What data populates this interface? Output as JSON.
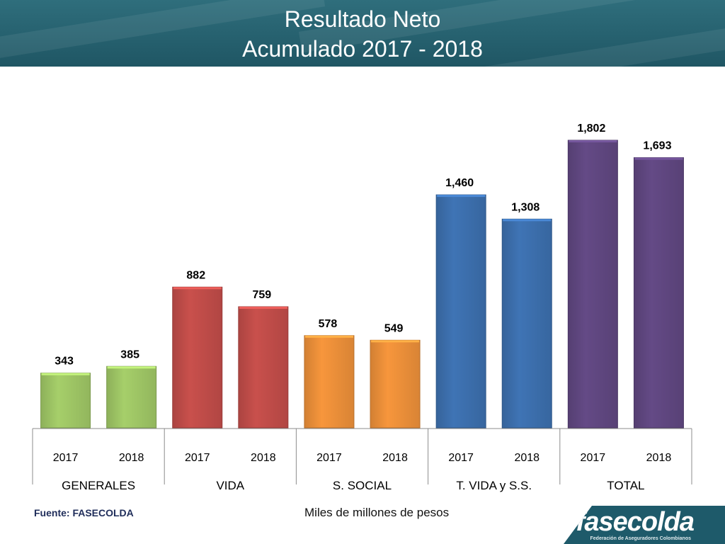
{
  "header": {
    "title_line1": "Resultado Neto",
    "title_line2": "Acumulado  2017 - 2018"
  },
  "footer": {
    "source": "Fuente: FASECOLDA",
    "unit": "Miles de millones de pesos",
    "logo_name": "fasecolda",
    "logo_tagline": "Federación de Aseguradores Colombianos"
  },
  "chart_data": {
    "type": "bar",
    "title": "Resultado Neto Acumulado 2017 - 2018",
    "ylabel": "",
    "xlabel": "",
    "unit": "Miles de millones de pesos",
    "ylim": [
      0,
      1802
    ],
    "grid": false,
    "groups": [
      {
        "name": "GENERALES",
        "color": "#a6cf6a",
        "years": [
          "2017",
          "2018"
        ],
        "values": [
          343,
          385
        ],
        "labels": [
          "343",
          "385"
        ]
      },
      {
        "name": "VIDA",
        "color": "#c9504c",
        "years": [
          "2017",
          "2018"
        ],
        "values": [
          882,
          759
        ],
        "labels": [
          "882",
          "759"
        ]
      },
      {
        "name": "S. SOCIAL",
        "color": "#f7963c",
        "years": [
          "2017",
          "2018"
        ],
        "values": [
          578,
          549
        ],
        "labels": [
          "578",
          "549"
        ]
      },
      {
        "name": "T. VIDA y S.S.",
        "color": "#3f74b5",
        "years": [
          "2017",
          "2018"
        ],
        "values": [
          1460,
          1308
        ],
        "labels": [
          "1,460",
          "1,308"
        ]
      },
      {
        "name": "TOTAL",
        "color": "#644a86",
        "years": [
          "2017",
          "2018"
        ],
        "values": [
          1802,
          1693
        ],
        "labels": [
          "1,802",
          "1,693"
        ]
      }
    ]
  }
}
